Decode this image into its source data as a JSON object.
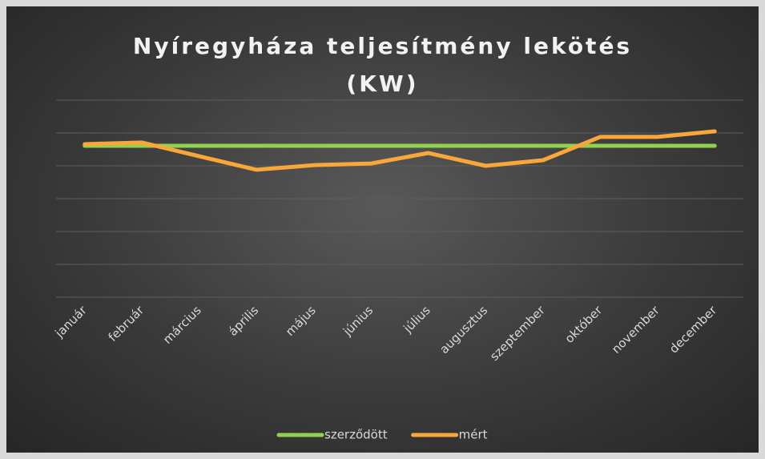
{
  "chart_data": {
    "type": "line",
    "title": "Nyíregyháza teljesítmény lekötés (KW)",
    "categories": [
      "január",
      "február",
      "március",
      "április",
      "május",
      "június",
      "július",
      "augusztus",
      "szeptember",
      "október",
      "november",
      "december"
    ],
    "series": [
      {
        "name": "szerződött",
        "color": "#92d050",
        "values": [
          4.61,
          4.61,
          4.61,
          4.61,
          4.61,
          4.61,
          4.61,
          4.61,
          4.61,
          4.61,
          4.61,
          4.61
        ]
      },
      {
        "name": "mért",
        "color": "#f9a63a",
        "values": [
          4.66,
          4.71,
          4.29,
          3.88,
          4.02,
          4.07,
          4.39,
          4.0,
          4.17,
          4.88,
          4.88,
          5.05
        ]
      }
    ],
    "ylim": [
      0,
      6
    ],
    "yticks": [
      0,
      1,
      2,
      3,
      4,
      5,
      6
    ],
    "grid": true,
    "legend": "bottom"
  }
}
